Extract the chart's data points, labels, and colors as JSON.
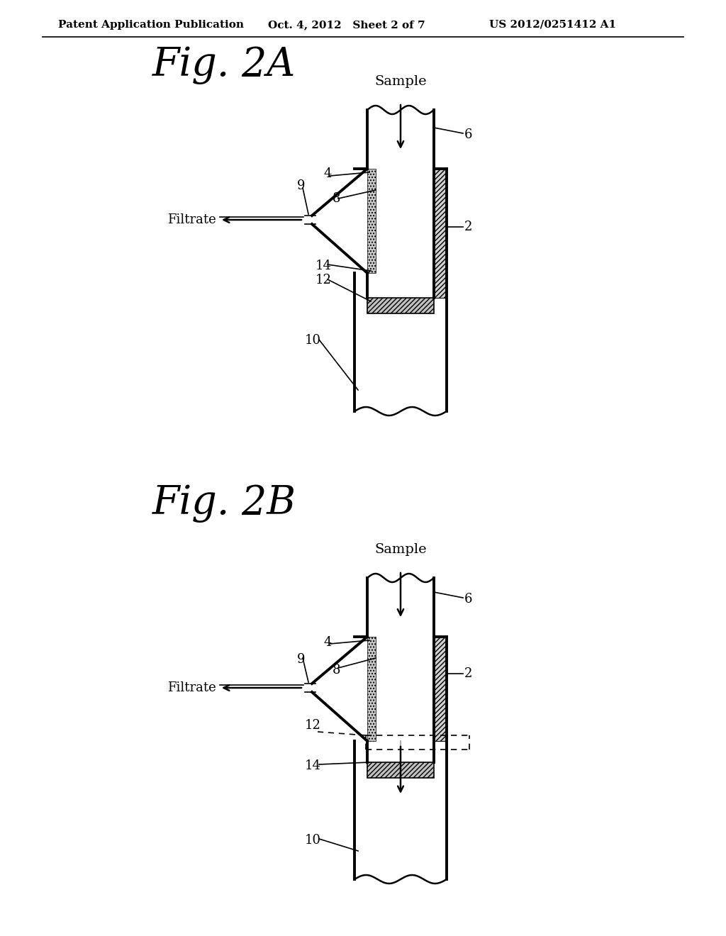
{
  "bg_color": "#ffffff",
  "line_color": "#000000",
  "header_left": "Patent Application Publication",
  "header_mid": "Oct. 4, 2012   Sheet 2 of 7",
  "header_right": "US 2012/0251412 A1",
  "fig2a_title": "Fig. 2A",
  "fig2b_title": "Fig. 2B",
  "label_sample": "Sample",
  "label_filtrate": "Filtrate"
}
